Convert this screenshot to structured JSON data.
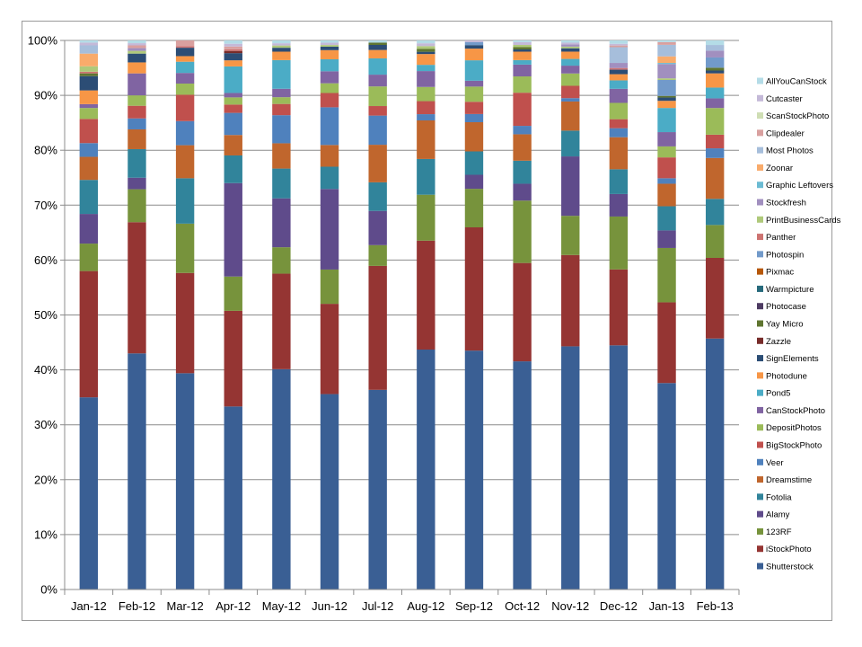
{
  "chart_data": {
    "type": "bar",
    "stacked": true,
    "percent": true,
    "title": "",
    "xlabel": "",
    "ylabel": "",
    "ylim": [
      0,
      100
    ],
    "yticks": [
      "0%",
      "10%",
      "20%",
      "30%",
      "40%",
      "50%",
      "60%",
      "70%",
      "80%",
      "90%",
      "100%"
    ],
    "grid": "horizontal",
    "legend": "right",
    "categories": [
      "Jan-12",
      "Feb-12",
      "Mar-12",
      "Apr-12",
      "May-12",
      "Jun-12",
      "Jul-12",
      "Aug-12",
      "Sep-12",
      "Oct-12",
      "Nov-12",
      "Dec-12",
      "Jan-13",
      "Feb-13"
    ],
    "series": [
      {
        "name": "Shutterstock",
        "color": "#3A5F94",
        "values": [
          35.0,
          43.0,
          38.6,
          33.1,
          39.2,
          34.2,
          35.6,
          42.3,
          40.9,
          40.6,
          43.4,
          43.4,
          37.6,
          44.2
        ]
      },
      {
        "name": "iStockPhoto",
        "color": "#953533",
        "values": [
          23.0,
          23.9,
          17.9,
          17.3,
          17.0,
          15.8,
          22.1,
          19.2,
          21.1,
          17.5,
          16.3,
          13.5,
          14.7,
          14.2
        ]
      },
      {
        "name": "123RF",
        "color": "#77933C",
        "values": [
          5.0,
          6.0,
          8.8,
          6.2,
          4.7,
          6.0,
          3.7,
          8.1,
          6.6,
          11.1,
          7.0,
          9.4,
          9.9,
          5.8
        ]
      },
      {
        "name": "Alamy",
        "color": "#5F4B8B",
        "values": [
          5.4,
          2.1,
          0,
          16.9,
          8.7,
          14.1,
          6.1,
          0,
          2.4,
          3.0,
          10.6,
          4.0,
          3.2,
          0
        ]
      },
      {
        "name": "Fotolia",
        "color": "#31849B",
        "values": [
          6.2,
          5.2,
          8.1,
          5.0,
          5.3,
          3.9,
          5.1,
          6.3,
          4.0,
          4.1,
          4.6,
          4.4,
          4.4,
          4.6
        ]
      },
      {
        "name": "Dreamstime",
        "color": "#C0662D",
        "values": [
          4.2,
          3.6,
          5.9,
          3.7,
          4.5,
          3.8,
          6.7,
          6.8,
          5.0,
          4.7,
          5.2,
          5.7,
          4.1,
          7.2
        ]
      },
      {
        "name": "Veer",
        "color": "#4F81BD",
        "values": [
          2.5,
          2.0,
          4.3,
          4.0,
          5.0,
          6.6,
          5.2,
          1.1,
          1.4,
          1.5,
          0.6,
          1.6,
          1.0,
          1.7
        ]
      },
      {
        "name": "BigStockPhoto",
        "color": "#C0504D",
        "values": [
          4.4,
          2.3,
          4.7,
          1.5,
          2.0,
          2.5,
          1.7,
          2.3,
          2.1,
          5.9,
          2.2,
          1.6,
          3.8,
          2.4
        ]
      },
      {
        "name": "DepositPhotos",
        "color": "#9BBB59",
        "values": [
          2.0,
          1.9,
          2.0,
          1.3,
          1.2,
          1.7,
          3.5,
          2.5,
          2.6,
          2.9,
          2.2,
          2.9,
          2.0,
          4.7
        ]
      },
      {
        "name": "CanStockPhoto",
        "color": "#8064A2",
        "values": [
          0.7,
          4.0,
          1.9,
          0.8,
          1.5,
          2.1,
          2.1,
          2.8,
          1.0,
          2.1,
          1.4,
          2.5,
          2.6,
          1.7
        ]
      },
      {
        "name": "Pond5",
        "color": "#4BACC6",
        "values": [
          0,
          0,
          2.0,
          4.8,
          5.1,
          2.1,
          2.9,
          1.1,
          3.5,
          0.8,
          1.2,
          1.5,
          4.4,
          1.9
        ]
      },
      {
        "name": "Photodune",
        "color": "#F79646",
        "values": [
          2.5,
          2.0,
          1.0,
          1.1,
          1.5,
          1.6,
          1.5,
          1.9,
          2.0,
          1.5,
          1.3,
          1.1,
          1.3,
          2.5
        ]
      },
      {
        "name": "SignElements",
        "color": "#2C4D75",
        "values": [
          2.6,
          1.6,
          1.5,
          1.3,
          0.7,
          0.6,
          0.9,
          0.4,
          0.6,
          0.4,
          0.6,
          0.8,
          0.6,
          0.5
        ]
      },
      {
        "name": "Zazzle",
        "color": "#772C2A",
        "values": [
          0,
          0,
          0,
          0.4,
          0,
          0,
          0,
          0,
          0,
          0,
          0,
          0,
          0,
          0
        ]
      },
      {
        "name": "Yay Micro",
        "color": "#5F7530",
        "values": [
          0.5,
          0,
          0,
          0,
          0,
          0,
          0.4,
          0.5,
          0,
          0.4,
          0,
          0,
          0.3,
          0.5
        ]
      },
      {
        "name": "Photocase",
        "color": "#4D3B62",
        "values": [
          0,
          0,
          0,
          0,
          0,
          0,
          0,
          0,
          0,
          0,
          0,
          0,
          0,
          0
        ]
      },
      {
        "name": "Warmpicture",
        "color": "#276A7C",
        "values": [
          0,
          0,
          0,
          0,
          0,
          0,
          0,
          0,
          0,
          0,
          0,
          0,
          0,
          0
        ]
      },
      {
        "name": "Pixmac",
        "color": "#B65708",
        "values": [
          0,
          0,
          0,
          0,
          0,
          0,
          0,
          0,
          0,
          0,
          0,
          0,
          0,
          0
        ]
      },
      {
        "name": "Photospin",
        "color": "#729ACA",
        "values": [
          0,
          0,
          0,
          0,
          0,
          0,
          0,
          0,
          0.5,
          0,
          0,
          0,
          2.9,
          1.8
        ]
      },
      {
        "name": "Panther",
        "color": "#CD7371",
        "values": [
          0.3,
          0,
          0.3,
          0.3,
          0,
          0,
          0,
          0,
          0,
          0,
          0,
          0.3,
          0,
          0
        ]
      },
      {
        "name": "PrintBusinessCards",
        "color": "#AFC97A",
        "values": [
          1.0,
          0.5,
          0,
          0,
          0.4,
          0.3,
          0,
          0.5,
          0,
          0.4,
          0.3,
          0,
          0.3,
          0
        ]
      },
      {
        "name": "Stockfresh",
        "color": "#A18FBF",
        "values": [
          0,
          0.5,
          0,
          0,
          0,
          0,
          0,
          0,
          0,
          0,
          0.4,
          0.9,
          2.6,
          1.2
        ]
      },
      {
        "name": "Graphic Leftovers",
        "color": "#6BBBD3",
        "values": [
          0,
          0,
          0,
          0,
          0,
          0,
          0,
          0,
          0,
          0,
          0,
          0,
          0.2,
          0
        ]
      },
      {
        "name": "Zoonar",
        "color": "#F9AB6B",
        "values": [
          2.3,
          0,
          0,
          0,
          0,
          0,
          0,
          0,
          0,
          0,
          0,
          0,
          1.2,
          0
        ]
      },
      {
        "name": "Most Photos",
        "color": "#A6BEDB",
        "values": [
          1.5,
          0,
          0,
          0,
          0,
          0,
          0,
          0,
          0,
          0,
          0,
          2.8,
          2.1,
          1.0
        ]
      },
      {
        "name": "Clipdealer",
        "color": "#D9A09F",
        "values": [
          0,
          0.5,
          1.0,
          0.5,
          0,
          0,
          0,
          0,
          0,
          0,
          0,
          0.3,
          0.5,
          0
        ]
      },
      {
        "name": "ScanStockPhoto",
        "color": "#CFDEB4",
        "values": [
          0,
          0,
          0,
          0,
          0,
          0,
          0,
          0,
          0,
          0,
          0,
          0,
          0,
          0
        ]
      },
      {
        "name": "Cutcaster",
        "color": "#C4B9D8",
        "values": [
          0.5,
          0.4,
          0,
          0.5,
          0.4,
          0.4,
          0,
          0.5,
          0.3,
          0.5,
          0.3,
          0.3,
          0,
          0
        ]
      },
      {
        "name": "AllYouCanStock",
        "color": "#B4DCE7",
        "values": [
          0.4,
          0.5,
          0,
          0.6,
          0.5,
          0.4,
          0.4,
          0.5,
          0,
          0.3,
          0.4,
          0.6,
          0.3,
          0.8
        ]
      }
    ]
  }
}
